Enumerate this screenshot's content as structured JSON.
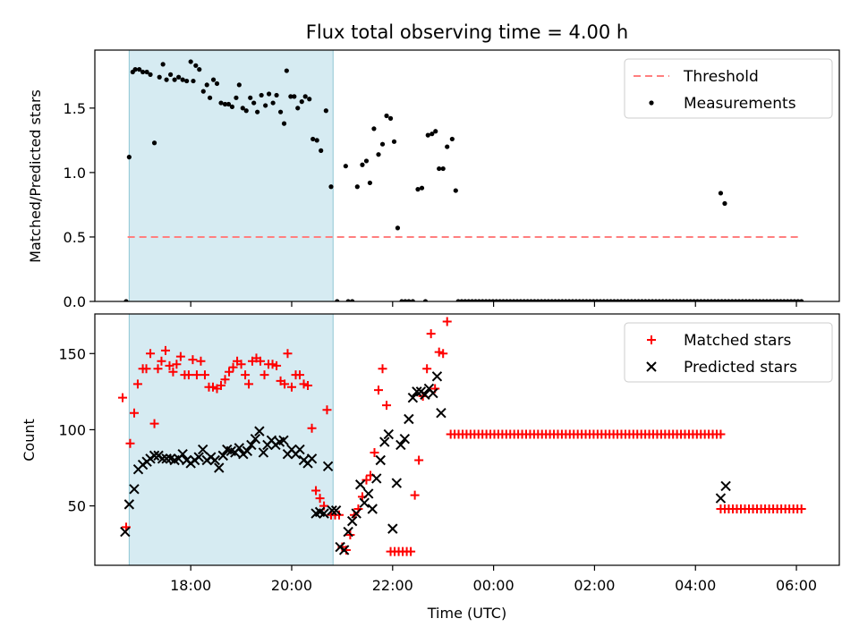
{
  "chart_data": [
    {
      "type": "scatter",
      "title": "Flux total observing time = 4.00 h",
      "xlabel": "",
      "ylabel": "Matched/Predicted stars",
      "ylim": [
        0,
        1.95
      ],
      "xlim_hours": [
        16.1,
        30.85
      ],
      "yticks": [
        0,
        0.5,
        1.0,
        1.5
      ],
      "ytick_labels": [
        "0.0",
        "0.5",
        "1.0",
        "1.5"
      ],
      "observing_window_hours": [
        16.78,
        20.82
      ],
      "threshold": {
        "label": "Threshold",
        "value": 0.5,
        "x_range": [
          16.75,
          30.1
        ],
        "color": "#ff7f7f"
      },
      "legend": {
        "position": "top-right",
        "entries": [
          "Threshold",
          "Measurements"
        ]
      },
      "series": [
        {
          "name": "Measurements",
          "color": "#000000",
          "points": [
            [
              16.72,
              0.0
            ],
            [
              16.78,
              1.12
            ],
            [
              16.85,
              1.78
            ],
            [
              16.9,
              1.8
            ],
            [
              16.98,
              1.8
            ],
            [
              17.05,
              1.78
            ],
            [
              17.13,
              1.78
            ],
            [
              17.2,
              1.76
            ],
            [
              17.28,
              1.23
            ],
            [
              17.38,
              1.74
            ],
            [
              17.45,
              1.84
            ],
            [
              17.52,
              1.72
            ],
            [
              17.6,
              1.76
            ],
            [
              17.68,
              1.72
            ],
            [
              17.76,
              1.74
            ],
            [
              17.84,
              1.72
            ],
            [
              17.92,
              1.71
            ],
            [
              18.0,
              1.86
            ],
            [
              18.05,
              1.71
            ],
            [
              18.1,
              1.83
            ],
            [
              18.17,
              1.8
            ],
            [
              18.25,
              1.63
            ],
            [
              18.32,
              1.68
            ],
            [
              18.38,
              1.58
            ],
            [
              18.45,
              1.72
            ],
            [
              18.52,
              1.69
            ],
            [
              18.6,
              1.54
            ],
            [
              18.68,
              1.53
            ],
            [
              18.75,
              1.53
            ],
            [
              18.82,
              1.51
            ],
            [
              18.9,
              1.58
            ],
            [
              18.96,
              1.68
            ],
            [
              19.03,
              1.5
            ],
            [
              19.1,
              1.48
            ],
            [
              19.18,
              1.58
            ],
            [
              19.25,
              1.54
            ],
            [
              19.32,
              1.47
            ],
            [
              19.4,
              1.6
            ],
            [
              19.48,
              1.52
            ],
            [
              19.55,
              1.61
            ],
            [
              19.63,
              1.54
            ],
            [
              19.7,
              1.6
            ],
            [
              19.78,
              1.47
            ],
            [
              19.85,
              1.38
            ],
            [
              19.9,
              1.79
            ],
            [
              19.98,
              1.59
            ],
            [
              20.05,
              1.59
            ],
            [
              20.12,
              1.5
            ],
            [
              20.2,
              1.55
            ],
            [
              20.27,
              1.59
            ],
            [
              20.35,
              1.57
            ],
            [
              20.42,
              1.26
            ],
            [
              20.5,
              1.25
            ],
            [
              20.58,
              1.17
            ],
            [
              20.68,
              1.48
            ],
            [
              20.78,
              0.89
            ],
            [
              20.9,
              0.0
            ],
            [
              21.07,
              1.05
            ],
            [
              21.12,
              0.0
            ],
            [
              21.2,
              0.0
            ],
            [
              21.3,
              0.89
            ],
            [
              21.4,
              1.06
            ],
            [
              21.48,
              1.09
            ],
            [
              21.55,
              0.92
            ],
            [
              21.63,
              1.34
            ],
            [
              21.72,
              1.14
            ],
            [
              21.8,
              1.22
            ],
            [
              21.88,
              1.44
            ],
            [
              21.96,
              1.42
            ],
            [
              22.03,
              1.24
            ],
            [
              22.1,
              0.57
            ],
            [
              22.18,
              0.0
            ],
            [
              22.25,
              0.0
            ],
            [
              22.32,
              0.0
            ],
            [
              22.4,
              0.0
            ],
            [
              22.5,
              0.87
            ],
            [
              22.58,
              0.88
            ],
            [
              22.65,
              0.0
            ],
            [
              22.7,
              1.29
            ],
            [
              22.78,
              1.3
            ],
            [
              22.85,
              1.32
            ],
            [
              22.92,
              1.03
            ],
            [
              23.0,
              1.03
            ],
            [
              23.08,
              1.2
            ],
            [
              23.18,
              1.26
            ],
            [
              23.25,
              0.86
            ]
          ],
          "zero_run": {
            "x_start": 23.3,
            "x_end": 30.1,
            "count": 100,
            "value": 0.0
          },
          "extra_points": [
            [
              28.5,
              0.84
            ],
            [
              28.58,
              0.76
            ]
          ]
        }
      ]
    },
    {
      "type": "scatter",
      "title": "",
      "xlabel": "Time (UTC)",
      "ylabel": "Count",
      "ylim": [
        11,
        176
      ],
      "xlim_hours": [
        16.1,
        30.85
      ],
      "yticks": [
        50,
        100,
        150
      ],
      "ytick_labels": [
        "50",
        "100",
        "150"
      ],
      "xticks_hours": [
        18,
        20,
        22,
        24,
        26,
        28,
        30
      ],
      "xtick_labels": [
        "18:00",
        "20:00",
        "22:00",
        "00:00",
        "02:00",
        "04:00",
        "06:00"
      ],
      "observing_window_hours": [
        16.78,
        20.82
      ],
      "legend": {
        "position": "top-right",
        "entries": [
          "Matched stars",
          "Predicted stars"
        ]
      },
      "series": [
        {
          "name": "Matched stars",
          "marker": "plus",
          "color": "#ff0000",
          "points": [
            [
              16.65,
              121
            ],
            [
              16.72,
              36
            ],
            [
              16.8,
              91
            ],
            [
              16.88,
              111
            ],
            [
              16.95,
              130
            ],
            [
              17.05,
              140
            ],
            [
              17.12,
              140
            ],
            [
              17.2,
              150
            ],
            [
              17.28,
              104
            ],
            [
              17.35,
              140
            ],
            [
              17.42,
              145
            ],
            [
              17.5,
              152
            ],
            [
              17.58,
              142
            ],
            [
              17.65,
              138
            ],
            [
              17.72,
              143
            ],
            [
              17.8,
              148
            ],
            [
              17.88,
              136
            ],
            [
              17.96,
              136
            ],
            [
              18.04,
              146
            ],
            [
              18.12,
              136
            ],
            [
              18.2,
              145
            ],
            [
              18.28,
              136
            ],
            [
              18.36,
              128
            ],
            [
              18.44,
              128
            ],
            [
              18.52,
              127
            ],
            [
              18.6,
              129
            ],
            [
              18.68,
              133
            ],
            [
              18.76,
              138
            ],
            [
              18.84,
              141
            ],
            [
              18.92,
              145
            ],
            [
              19.0,
              143
            ],
            [
              19.08,
              136
            ],
            [
              19.15,
              130
            ],
            [
              19.22,
              145
            ],
            [
              19.3,
              147
            ],
            [
              19.38,
              145
            ],
            [
              19.46,
              136
            ],
            [
              19.54,
              143
            ],
            [
              19.62,
              143
            ],
            [
              19.7,
              142
            ],
            [
              19.78,
              132
            ],
            [
              19.86,
              130
            ],
            [
              19.92,
              150
            ],
            [
              20.0,
              128
            ],
            [
              20.08,
              136
            ],
            [
              20.16,
              136
            ],
            [
              20.24,
              130
            ],
            [
              20.32,
              129
            ],
            [
              20.4,
              101
            ],
            [
              20.48,
              60
            ],
            [
              20.56,
              55
            ],
            [
              20.64,
              50
            ],
            [
              20.7,
              113
            ],
            [
              20.78,
              44
            ],
            [
              20.86,
              44
            ],
            [
              20.94,
              44
            ],
            [
              21.0,
              23
            ],
            [
              21.08,
              21
            ],
            [
              21.16,
              31
            ],
            [
              21.24,
              44
            ],
            [
              21.32,
              48
            ],
            [
              21.4,
              56
            ],
            [
              21.48,
              67
            ],
            [
              21.56,
              70
            ],
            [
              21.64,
              85
            ],
            [
              21.72,
              126
            ],
            [
              21.8,
              140
            ],
            [
              21.88,
              116
            ],
            [
              21.96,
              20
            ],
            [
              22.04,
              20
            ],
            [
              22.12,
              20
            ],
            [
              22.2,
              20
            ],
            [
              22.28,
              20
            ],
            [
              22.36,
              20
            ],
            [
              22.44,
              57
            ],
            [
              22.52,
              80
            ],
            [
              22.6,
              122
            ],
            [
              22.68,
              140
            ],
            [
              22.76,
              163
            ],
            [
              22.84,
              127
            ],
            [
              22.92,
              151
            ],
            [
              23.0,
              150
            ],
            [
              23.08,
              171
            ]
          ],
          "flat_runs": [
            {
              "x_start": 23.15,
              "x_end": 28.5,
              "count": 69,
              "value": 97
            },
            {
              "x_start": 28.5,
              "x_end": 30.1,
              "count": 21,
              "value": 48
            }
          ]
        },
        {
          "name": "Predicted stars",
          "marker": "cross",
          "color": "#000000",
          "points": [
            [
              16.7,
              33
            ],
            [
              16.78,
              51
            ],
            [
              16.88,
              61
            ],
            [
              16.96,
              74
            ],
            [
              17.05,
              77
            ],
            [
              17.13,
              79
            ],
            [
              17.2,
              81
            ],
            [
              17.28,
              83
            ],
            [
              17.36,
              83
            ],
            [
              17.44,
              81
            ],
            [
              17.52,
              81
            ],
            [
              17.6,
              81
            ],
            [
              17.68,
              80
            ],
            [
              17.76,
              81
            ],
            [
              17.84,
              84
            ],
            [
              17.92,
              80
            ],
            [
              18.0,
              78
            ],
            [
              18.08,
              80
            ],
            [
              18.16,
              82
            ],
            [
              18.24,
              87
            ],
            [
              18.32,
              80
            ],
            [
              18.4,
              82
            ],
            [
              18.48,
              80
            ],
            [
              18.56,
              75
            ],
            [
              18.64,
              83
            ],
            [
              18.72,
              87
            ],
            [
              18.8,
              86
            ],
            [
              18.88,
              85
            ],
            [
              18.96,
              88
            ],
            [
              19.04,
              84
            ],
            [
              19.12,
              86
            ],
            [
              19.2,
              90
            ],
            [
              19.28,
              94
            ],
            [
              19.36,
              99
            ],
            [
              19.44,
              85
            ],
            [
              19.52,
              90
            ],
            [
              19.6,
              93
            ],
            [
              19.68,
              90
            ],
            [
              19.76,
              92
            ],
            [
              19.84,
              93
            ],
            [
              19.92,
              84
            ],
            [
              20.0,
              87
            ],
            [
              20.08,
              84
            ],
            [
              20.16,
              87
            ],
            [
              20.24,
              80
            ],
            [
              20.32,
              78
            ],
            [
              20.4,
              81
            ],
            [
              20.48,
              45
            ],
            [
              20.56,
              46
            ],
            [
              20.64,
              45
            ],
            [
              20.72,
              76
            ],
            [
              20.8,
              47
            ],
            [
              20.88,
              47
            ],
            [
              20.96,
              23
            ],
            [
              21.04,
              21
            ],
            [
              21.12,
              33
            ],
            [
              21.2,
              40
            ],
            [
              21.28,
              45
            ],
            [
              21.36,
              64
            ],
            [
              21.44,
              52
            ],
            [
              21.52,
              58
            ],
            [
              21.6,
              48
            ],
            [
              21.68,
              68
            ],
            [
              21.76,
              80
            ],
            [
              21.84,
              92
            ],
            [
              21.92,
              97
            ],
            [
              22.0,
              35
            ],
            [
              22.08,
              65
            ],
            [
              22.16,
              90
            ],
            [
              22.24,
              94
            ],
            [
              22.32,
              107
            ],
            [
              22.4,
              121
            ],
            [
              22.48,
              125
            ],
            [
              22.56,
              125
            ],
            [
              22.64,
              123
            ],
            [
              22.72,
              127
            ],
            [
              22.8,
              124
            ],
            [
              22.88,
              135
            ],
            [
              22.96,
              111
            ],
            [
              28.5,
              55
            ],
            [
              28.6,
              63
            ]
          ]
        }
      ]
    }
  ]
}
